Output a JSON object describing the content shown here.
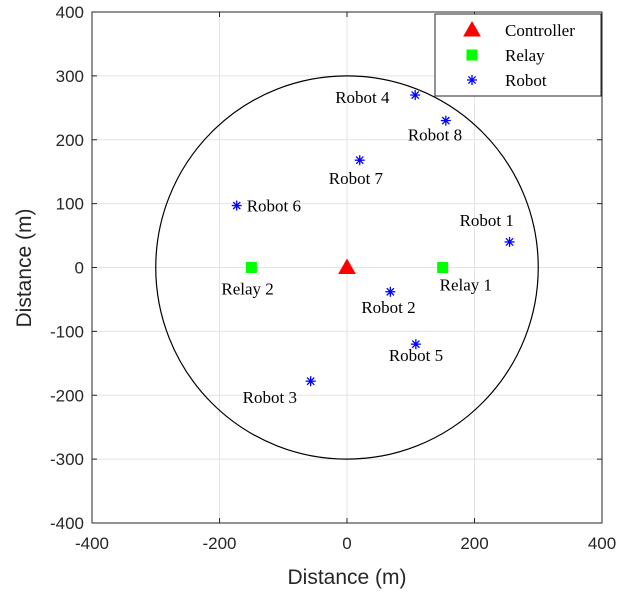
{
  "chart_data": {
    "type": "scatter",
    "xlabel": "Distance (m)",
    "ylabel": "Distance (m)",
    "xlim": [
      -400,
      400
    ],
    "ylim": [
      -400,
      400
    ],
    "xticks": [
      "-400",
      "-200",
      "0",
      "200",
      "400"
    ],
    "yticks": [
      "400",
      "300",
      "200",
      "100",
      "0",
      "-100",
      "-200",
      "-300",
      "-400"
    ],
    "grid": true,
    "legend_position": "top-right",
    "coverage_circle": {
      "center": [
        0,
        0
      ],
      "radius": 300,
      "color": "#000000"
    },
    "series": [
      {
        "name": "Controller",
        "marker": "triangle",
        "color": "#ff0000",
        "points": [
          {
            "x": 0,
            "y": 0
          }
        ]
      },
      {
        "name": "Relay",
        "marker": "square",
        "color": "#00ff00",
        "points": [
          {
            "x": 150,
            "y": 0,
            "label": "Relay 1"
          },
          {
            "x": -150,
            "y": 0,
            "label": "Relay 2"
          }
        ]
      },
      {
        "name": "Robot",
        "marker": "asterisk",
        "color": "#0000ff",
        "points": [
          {
            "x": 255,
            "y": 40,
            "label": "Robot 1"
          },
          {
            "x": 68,
            "y": -38,
            "label": "Robot 2"
          },
          {
            "x": -57,
            "y": -178,
            "label": "Robot 3"
          },
          {
            "x": 107,
            "y": 270,
            "label": "Robot 4"
          },
          {
            "x": 108,
            "y": -120,
            "label": "Robot 5"
          },
          {
            "x": -173,
            "y": 97,
            "label": "Robot 6"
          },
          {
            "x": 20,
            "y": 168,
            "label": "Robot 7"
          },
          {
            "x": 155,
            "y": 230,
            "label": "Robot 8"
          }
        ]
      }
    ]
  }
}
